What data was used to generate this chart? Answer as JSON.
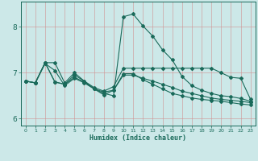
{
  "xlabel": "Humidex (Indice chaleur)",
  "bg_color": "#cce8e8",
  "line_color": "#1a6a5a",
  "xlim": [
    -0.5,
    23.5
  ],
  "ylim": [
    5.85,
    8.55
  ],
  "xticks": [
    0,
    1,
    2,
    3,
    4,
    5,
    6,
    7,
    8,
    9,
    10,
    11,
    12,
    13,
    14,
    15,
    16,
    17,
    18,
    19,
    20,
    21,
    22,
    23
  ],
  "yticks": [
    6,
    7,
    8
  ],
  "lines": [
    [
      6.82,
      6.78,
      7.22,
      7.22,
      6.78,
      7.0,
      6.82,
      6.68,
      6.6,
      6.7,
      7.1,
      7.1,
      7.1,
      7.1,
      7.1,
      7.1,
      7.1,
      7.1,
      7.1,
      7.1,
      7.0,
      6.9,
      6.88,
      6.42
    ],
    [
      6.82,
      6.78,
      7.22,
      6.8,
      6.75,
      6.95,
      6.82,
      6.65,
      6.55,
      6.5,
      8.22,
      8.28,
      8.02,
      7.8,
      7.5,
      7.28,
      6.92,
      6.72,
      6.62,
      6.55,
      6.5,
      6.48,
      6.44,
      6.38
    ],
    [
      6.82,
      6.78,
      7.2,
      7.05,
      6.72,
      6.88,
      6.78,
      6.65,
      6.58,
      6.62,
      6.95,
      6.95,
      6.88,
      6.82,
      6.75,
      6.68,
      6.6,
      6.55,
      6.5,
      6.45,
      6.42,
      6.4,
      6.38,
      6.35
    ],
    [
      6.82,
      6.78,
      7.22,
      6.8,
      6.75,
      6.9,
      6.8,
      6.65,
      6.52,
      6.62,
      6.98,
      6.98,
      6.85,
      6.75,
      6.65,
      6.55,
      6.5,
      6.45,
      6.42,
      6.4,
      6.38,
      6.35,
      6.32,
      6.3
    ]
  ]
}
